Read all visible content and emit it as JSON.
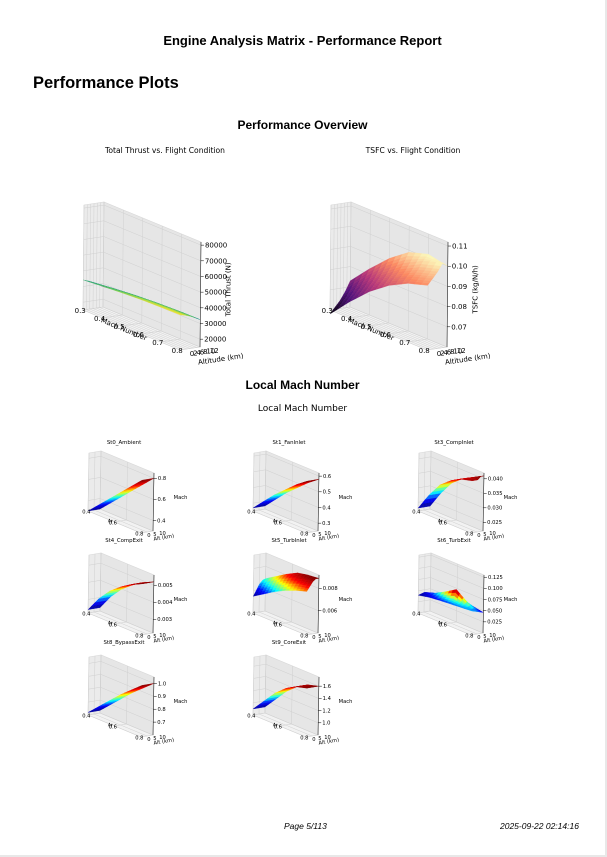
{
  "report": {
    "title": "Engine Analysis Matrix - Performance Report",
    "section_title": "Performance Plots"
  },
  "footer": {
    "page": "Page 5/113",
    "timestamp": "2025-09-22 02:14:16"
  },
  "figures": {
    "overview_title": "Performance Overview",
    "mach_section_title": "Local Mach Number",
    "mach_suptitle": "Local Mach Number"
  },
  "chart_data": [
    {
      "type": "surface3d",
      "title": "Total Thrust vs. Flight Condition",
      "xlabel": "Mach Number",
      "ylabel": "Altitude (km)",
      "zlabel": "Total Thrust (N)",
      "x_ticks": [
        "0.3",
        "0.4",
        "0.5",
        "0.6",
        "0.7",
        "0.8"
      ],
      "y_ticks": [
        "0",
        "2",
        "4",
        "6",
        "8",
        "10",
        "12"
      ],
      "z_ticks": [
        "20000",
        "30000",
        "40000",
        "50000",
        "60000",
        "70000",
        "80000"
      ],
      "xlim": [
        0.3,
        0.8
      ],
      "ylim": [
        0,
        12
      ],
      "zlim": [
        15000,
        82000
      ],
      "colormap": "viridis",
      "surface": [
        [
          34200,
          35200,
          36100,
          36800,
          37200,
          37400
        ],
        [
          33000,
          34300,
          35300,
          36100,
          36500,
          36700
        ],
        [
          31600,
          33000,
          34200,
          35000,
          35400,
          35600
        ],
        [
          29900,
          31500,
          32700,
          33500,
          34000,
          34200
        ],
        [
          28000,
          29600,
          30900,
          31700,
          32200,
          32400
        ]
      ]
    },
    {
      "type": "surface3d",
      "title": "TSFC vs. Flight Condition",
      "xlabel": "Mach Number",
      "ylabel": "Altitude (km)",
      "zlabel": "TSFC (kg/N/h)",
      "x_ticks": [
        "0.3",
        "0.4",
        "0.5",
        "0.6",
        "0.7",
        "0.8"
      ],
      "y_ticks": [
        "0",
        "2",
        "4",
        "6",
        "8",
        "10",
        "12"
      ],
      "z_ticks": [
        "0.07",
        "0.08",
        "0.09",
        "0.10",
        "0.11"
      ],
      "xlim": [
        0.3,
        0.8
      ],
      "ylim": [
        0,
        12
      ],
      "zlim": [
        0.06,
        0.112
      ],
      "colormap": "magma",
      "surface": [
        [
          0.058,
          0.068,
          0.077,
          0.084,
          0.089,
          0.092
        ],
        [
          0.061,
          0.071,
          0.08,
          0.087,
          0.092,
          0.095
        ],
        [
          0.064,
          0.074,
          0.083,
          0.09,
          0.095,
          0.098
        ],
        [
          0.068,
          0.078,
          0.087,
          0.094,
          0.099,
          0.102
        ],
        [
          0.073,
          0.083,
          0.092,
          0.099,
          0.102,
          0.1
        ]
      ]
    },
    {
      "type": "surface3d",
      "title": "St0_Ambient",
      "xlabel": "M",
      "ylabel": "Alt (km)",
      "zlabel": "Mach",
      "x_ticks": [
        "0.4",
        "0.6",
        "0.8"
      ],
      "y_ticks": [
        "0",
        "5",
        "10"
      ],
      "z_ticks": [
        "0.4",
        "0.6",
        "0.8"
      ],
      "xlim": [
        0.3,
        0.8
      ],
      "ylim": [
        0,
        12
      ],
      "zlim": [
        0.3,
        0.85
      ],
      "colormap": "jet",
      "surface": [
        [
          0.3,
          0.4,
          0.5,
          0.6,
          0.7,
          0.8
        ],
        [
          0.3,
          0.4,
          0.5,
          0.6,
          0.7,
          0.8
        ],
        [
          0.3,
          0.4,
          0.5,
          0.6,
          0.7,
          0.8
        ],
        [
          0.3,
          0.4,
          0.5,
          0.6,
          0.7,
          0.8
        ],
        [
          0.3,
          0.4,
          0.5,
          0.6,
          0.7,
          0.8
        ]
      ]
    },
    {
      "type": "surface3d",
      "title": "St1_FanInlet",
      "xlabel": "M",
      "ylabel": "Alt (km)",
      "zlabel": "Mach",
      "x_ticks": [
        "0.4",
        "0.6",
        "0.8"
      ],
      "y_ticks": [
        "0",
        "5",
        "10"
      ],
      "z_ticks": [
        "0.3",
        "0.4",
        "0.5",
        "0.6"
      ],
      "xlim": [
        0.3,
        0.8
      ],
      "ylim": [
        0,
        12
      ],
      "zlim": [
        0.25,
        0.62
      ],
      "colormap": "jet",
      "surface": [
        [
          0.27,
          0.34,
          0.41,
          0.47,
          0.53,
          0.58
        ],
        [
          0.27,
          0.34,
          0.41,
          0.47,
          0.53,
          0.58
        ],
        [
          0.27,
          0.34,
          0.41,
          0.47,
          0.53,
          0.58
        ],
        [
          0.27,
          0.34,
          0.41,
          0.47,
          0.53,
          0.58
        ],
        [
          0.27,
          0.34,
          0.41,
          0.47,
          0.53,
          0.58
        ]
      ]
    },
    {
      "type": "surface3d",
      "title": "St3_CompInlet",
      "xlabel": "M",
      "ylabel": "Alt (km)",
      "zlabel": "Mach",
      "x_ticks": [
        "0.4",
        "0.6",
        "0.8"
      ],
      "y_ticks": [
        "0",
        "5",
        "10"
      ],
      "z_ticks": [
        "0.025",
        "0.030",
        "0.035",
        "0.040"
      ],
      "xlim": [
        0.3,
        0.8
      ],
      "ylim": [
        0,
        12
      ],
      "zlim": [
        0.022,
        0.042
      ],
      "colormap": "jet",
      "surface": [
        [
          0.023,
          0.029,
          0.034,
          0.037,
          0.039,
          0.04
        ],
        [
          0.023,
          0.029,
          0.034,
          0.037,
          0.039,
          0.04
        ],
        [
          0.023,
          0.029,
          0.034,
          0.037,
          0.039,
          0.04
        ],
        [
          0.023,
          0.029,
          0.034,
          0.037,
          0.039,
          0.041
        ],
        [
          0.023,
          0.029,
          0.034,
          0.037,
          0.039,
          0.041
        ]
      ]
    },
    {
      "type": "surface3d",
      "title": "St4_CompExit",
      "xlabel": "M",
      "ylabel": "Alt (km)",
      "zlabel": "Mach",
      "x_ticks": [
        "0.4",
        "0.6",
        "0.8"
      ],
      "y_ticks": [
        "0",
        "5",
        "10"
      ],
      "z_ticks": [
        "0.003",
        "0.004",
        "0.005"
      ],
      "xlim": [
        0.3,
        0.8
      ],
      "ylim": [
        0,
        12
      ],
      "zlim": [
        0.0022,
        0.0056
      ],
      "colormap": "jet",
      "surface": [
        [
          0.0024,
          0.0033,
          0.004,
          0.0045,
          0.0049,
          0.0052
        ],
        [
          0.0024,
          0.0033,
          0.004,
          0.0045,
          0.0049,
          0.0052
        ],
        [
          0.0024,
          0.0033,
          0.004,
          0.0045,
          0.0049,
          0.0052
        ],
        [
          0.0024,
          0.0033,
          0.004,
          0.0045,
          0.0049,
          0.0052
        ],
        [
          0.0024,
          0.0033,
          0.004,
          0.0045,
          0.0049,
          0.0052
        ]
      ]
    },
    {
      "type": "surface3d",
      "title": "St5_TurbInlet",
      "xlabel": "M",
      "ylabel": "Alt (km)",
      "zlabel": "Mach",
      "x_ticks": [
        "0.4",
        "0.6",
        "0.8"
      ],
      "y_ticks": [
        "0",
        "5",
        "10"
      ],
      "z_ticks": [
        "0.006",
        "0.008"
      ],
      "xlim": [
        0.3,
        0.8
      ],
      "ylim": [
        0,
        12
      ],
      "zlim": [
        0.004,
        0.0092
      ],
      "colormap": "jet",
      "surface": [
        [
          0.0055,
          0.0061,
          0.0067,
          0.0072,
          0.0076,
          0.0079
        ],
        [
          0.006,
          0.0066,
          0.0072,
          0.0077,
          0.0081,
          0.0083
        ],
        [
          0.0065,
          0.0071,
          0.0077,
          0.0082,
          0.0085,
          0.0087
        ],
        [
          0.0068,
          0.0074,
          0.008,
          0.0085,
          0.0088,
          0.0089
        ],
        [
          0.0069,
          0.0075,
          0.0081,
          0.0086,
          0.0088,
          0.0089
        ]
      ]
    },
    {
      "type": "surface3d",
      "title": "St6_TurbExit",
      "xlabel": "M",
      "ylabel": "Alt (km)",
      "zlabel": "Mach",
      "x_ticks": [
        "0.4",
        "0.6",
        "0.8"
      ],
      "y_ticks": [
        "0",
        "5",
        "10"
      ],
      "z_ticks": [
        "0.025",
        "0.050",
        "0.075",
        "0.100",
        "0.125"
      ],
      "xlim": [
        0.3,
        0.8
      ],
      "ylim": [
        0,
        12
      ],
      "zlim": [
        0.0,
        0.13
      ],
      "colormap": "jet",
      "surface": [
        [
          0.04,
          0.045,
          0.048,
          0.05,
          0.052,
          0.054
        ],
        [
          0.042,
          0.048,
          0.055,
          0.06,
          0.055,
          0.052
        ],
        [
          0.044,
          0.052,
          0.065,
          0.08,
          0.062,
          0.05
        ],
        [
          0.042,
          0.05,
          0.058,
          0.066,
          0.056,
          0.048
        ],
        [
          0.04,
          0.046,
          0.05,
          0.052,
          0.05,
          0.046
        ]
      ]
    },
    {
      "type": "surface3d",
      "title": "St8_BypassExit",
      "xlabel": "M",
      "ylabel": "Alt (km)",
      "zlabel": "Mach",
      "x_ticks": [
        "0.4",
        "0.6",
        "0.8"
      ],
      "y_ticks": [
        "0",
        "5",
        "10"
      ],
      "z_ticks": [
        "0.7",
        "0.8",
        "0.9",
        "1.0"
      ],
      "xlim": [
        0.3,
        0.8
      ],
      "ylim": [
        0,
        12
      ],
      "zlim": [
        0.6,
        1.05
      ],
      "colormap": "jet",
      "surface": [
        [
          0.62,
          0.7,
          0.78,
          0.86,
          0.93,
          1.0
        ],
        [
          0.62,
          0.7,
          0.78,
          0.86,
          0.93,
          1.0
        ],
        [
          0.62,
          0.7,
          0.78,
          0.86,
          0.93,
          1.0
        ],
        [
          0.62,
          0.7,
          0.78,
          0.86,
          0.93,
          1.0
        ],
        [
          0.62,
          0.7,
          0.78,
          0.86,
          0.93,
          1.0
        ]
      ]
    },
    {
      "type": "surface3d",
      "title": "St9_CoreExit",
      "xlabel": "M",
      "ylabel": "Alt (km)",
      "zlabel": "Mach",
      "x_ticks": [
        "0.4",
        "0.6",
        "0.8"
      ],
      "y_ticks": [
        "0",
        "5",
        "10"
      ],
      "z_ticks": [
        "1.0",
        "1.2",
        "1.4",
        "1.6"
      ],
      "xlim": [
        0.3,
        0.8
      ],
      "ylim": [
        0,
        12
      ],
      "zlim": [
        0.8,
        1.75
      ],
      "colormap": "jet",
      "surface": [
        [
          0.9,
          1.1,
          1.3,
          1.45,
          1.55,
          1.6
        ],
        [
          0.9,
          1.1,
          1.3,
          1.45,
          1.55,
          1.6
        ],
        [
          0.9,
          1.1,
          1.3,
          1.45,
          1.55,
          1.6
        ],
        [
          0.9,
          1.1,
          1.3,
          1.45,
          1.55,
          1.6
        ],
        [
          0.9,
          1.1,
          1.3,
          1.45,
          1.55,
          1.6
        ]
      ]
    }
  ]
}
